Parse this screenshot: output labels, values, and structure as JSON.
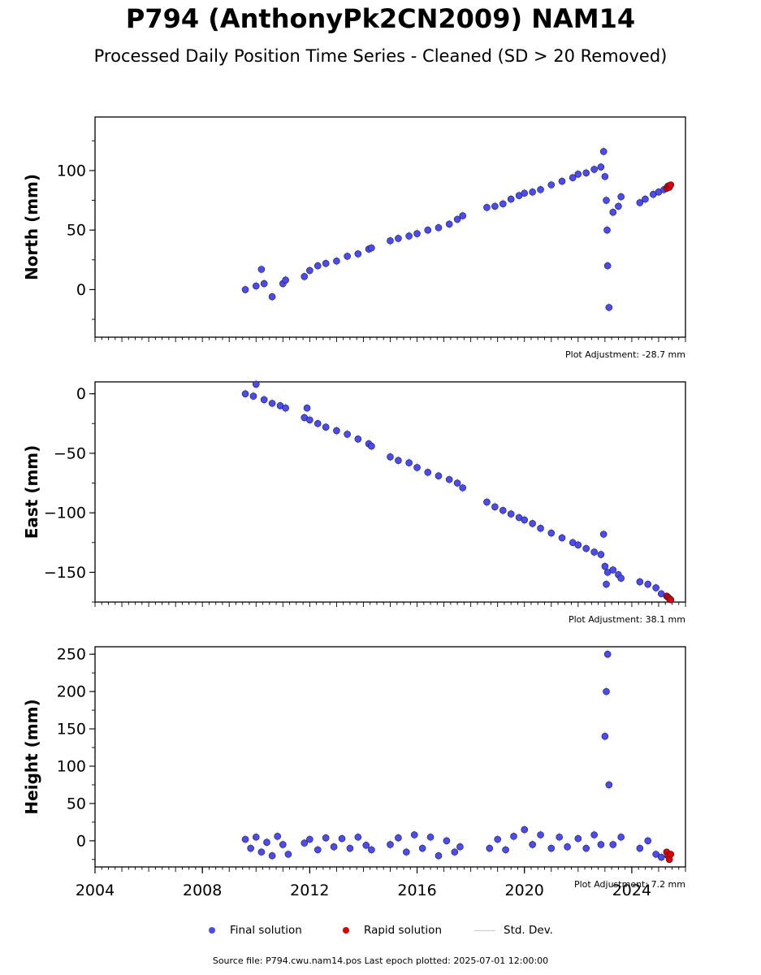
{
  "header": {
    "title": "P794 (AnthonyPk2CN2009) NAM14",
    "subtitle": "Processed Daily Position Time Series - Cleaned (SD > 20 Removed)"
  },
  "legend": {
    "final_label": "Final solution",
    "rapid_label": "Rapid solution",
    "std_label": "Std. Dev."
  },
  "footer": {
    "source": "Source file: P794.cwu.nam14.pos  Last epoch plotted: 2025-07-01 12:00:00"
  },
  "colors": {
    "final": "#4b4bf0",
    "rapid": "#e00000",
    "std": "#888888"
  },
  "chart_data": [
    {
      "type": "scatter",
      "ylabel": "North (mm)",
      "adjustment": "Plot Adjustment: -28.7 mm",
      "xlim": [
        2004,
        2026
      ],
      "ylim": [
        -40,
        145
      ],
      "yticks": [
        0,
        50,
        100
      ],
      "ytick_labels": [
        "0",
        "50",
        "100"
      ],
      "series": [
        {
          "name": "Final solution",
          "x": [
            2009.6,
            2010.0,
            2010.2,
            2010.3,
            2010.6,
            2011.0,
            2011.1,
            2011.8,
            2012.0,
            2012.3,
            2012.6,
            2013.0,
            2013.4,
            2013.8,
            2014.2,
            2014.3,
            2015.0,
            2015.3,
            2015.7,
            2016.0,
            2016.4,
            2016.8,
            2017.2,
            2017.5,
            2017.7,
            2018.6,
            2018.9,
            2019.2,
            2019.5,
            2019.8,
            2020.0,
            2020.3,
            2020.6,
            2021.0,
            2021.4,
            2021.8,
            2022.0,
            2022.3,
            2022.6,
            2022.85,
            2022.95,
            2023.0,
            2023.05,
            2023.08,
            2023.1,
            2023.15,
            2023.3,
            2023.5,
            2023.6,
            2024.3,
            2024.5,
            2024.8,
            2025.0,
            2025.2
          ],
          "y": [
            0,
            3,
            17,
            5,
            -6,
            5,
            8,
            11,
            16,
            20,
            22,
            24,
            28,
            30,
            34,
            35,
            41,
            43,
            45,
            47,
            50,
            52,
            55,
            59,
            62,
            69,
            70,
            72,
            76,
            79,
            81,
            82,
            84,
            88,
            91,
            94,
            97,
            98,
            101,
            103,
            116,
            95,
            75,
            50,
            20,
            -15,
            65,
            70,
            78,
            73,
            76,
            80,
            82,
            84
          ]
        },
        {
          "name": "Rapid solution",
          "x": [
            2025.3,
            2025.35,
            2025.4,
            2025.45
          ],
          "y": [
            85,
            87,
            86,
            88
          ]
        }
      ]
    },
    {
      "type": "scatter",
      "ylabel": "East (mm)",
      "adjustment": "Plot Adjustment: 38.1 mm",
      "xlim": [
        2004,
        2026
      ],
      "ylim": [
        -175,
        10
      ],
      "yticks": [
        0,
        -50,
        -100,
        -150
      ],
      "ytick_labels": [
        "0",
        "−50",
        "−100",
        "−150"
      ],
      "series": [
        {
          "name": "Final solution",
          "x": [
            2009.6,
            2009.9,
            2010.0,
            2010.3,
            2010.6,
            2010.9,
            2011.1,
            2011.8,
            2011.9,
            2012.0,
            2012.3,
            2012.6,
            2013.0,
            2013.4,
            2013.8,
            2014.2,
            2014.3,
            2015.0,
            2015.3,
            2015.7,
            2016.0,
            2016.4,
            2016.8,
            2017.2,
            2017.5,
            2017.7,
            2018.6,
            2018.9,
            2019.2,
            2019.5,
            2019.8,
            2020.0,
            2020.3,
            2020.6,
            2021.0,
            2021.4,
            2021.8,
            2022.0,
            2022.3,
            2022.6,
            2022.85,
            2022.95,
            2023.0,
            2023.05,
            2023.1,
            2023.3,
            2023.5,
            2023.6,
            2024.3,
            2024.6,
            2024.9,
            2025.1
          ],
          "y": [
            0,
            -2,
            8,
            -5,
            -8,
            -10,
            -12,
            -20,
            -12,
            -22,
            -25,
            -28,
            -31,
            -34,
            -38,
            -42,
            -44,
            -53,
            -56,
            -58,
            -62,
            -66,
            -69,
            -72,
            -75,
            -79,
            -91,
            -95,
            -98,
            -101,
            -104,
            -106,
            -109,
            -113,
            -117,
            -121,
            -125,
            -127,
            -130,
            -133,
            -135,
            -118,
            -145,
            -160,
            -150,
            -148,
            -152,
            -155,
            -158,
            -160,
            -163,
            -168
          ]
        },
        {
          "name": "Rapid solution",
          "x": [
            2025.3,
            2025.35,
            2025.4,
            2025.45
          ],
          "y": [
            -170,
            -171,
            -172,
            -173
          ]
        }
      ]
    },
    {
      "type": "scatter",
      "ylabel": "Height (mm)",
      "adjustment": "Plot Adjustment: 7.2 mm",
      "xlim": [
        2004,
        2026
      ],
      "ylim": [
        -35,
        260
      ],
      "yticks": [
        0,
        50,
        100,
        150,
        200,
        250
      ],
      "ytick_labels": [
        "0",
        "50",
        "100",
        "150",
        "200",
        "250"
      ],
      "xticks": [
        2004,
        2008,
        2012,
        2016,
        2020,
        2024
      ],
      "xtick_labels": [
        "2004",
        "2008",
        "2012",
        "2016",
        "2020",
        "2024"
      ],
      "series": [
        {
          "name": "Final solution",
          "x": [
            2009.6,
            2009.8,
            2010.0,
            2010.2,
            2010.4,
            2010.6,
            2010.8,
            2011.0,
            2011.2,
            2011.8,
            2012.0,
            2012.3,
            2012.6,
            2012.9,
            2013.2,
            2013.5,
            2013.8,
            2014.1,
            2014.3,
            2015.0,
            2015.3,
            2015.6,
            2015.9,
            2016.2,
            2016.5,
            2016.8,
            2017.1,
            2017.4,
            2017.6,
            2018.7,
            2019.0,
            2019.3,
            2019.6,
            2020.0,
            2020.3,
            2020.6,
            2021.0,
            2021.3,
            2021.6,
            2022.0,
            2022.3,
            2022.6,
            2022.85,
            2023.0,
            2023.05,
            2023.1,
            2023.15,
            2023.3,
            2023.6,
            2024.3,
            2024.6,
            2024.9,
            2025.1
          ],
          "y": [
            2,
            -10,
            5,
            -15,
            -2,
            -20,
            6,
            -5,
            -18,
            -3,
            2,
            -12,
            4,
            -8,
            3,
            -10,
            5,
            -6,
            -12,
            -5,
            4,
            -15,
            8,
            -10,
            5,
            -20,
            0,
            -15,
            -8,
            -10,
            2,
            -12,
            6,
            15,
            -5,
            8,
            -10,
            5,
            -8,
            3,
            -10,
            8,
            -5,
            140,
            200,
            250,
            75,
            -5,
            5,
            -10,
            0,
            -18,
            -22
          ]
        },
        {
          "name": "Rapid solution",
          "x": [
            2025.3,
            2025.35,
            2025.4,
            2025.45
          ],
          "y": [
            -15,
            -20,
            -25,
            -18
          ]
        }
      ]
    }
  ]
}
